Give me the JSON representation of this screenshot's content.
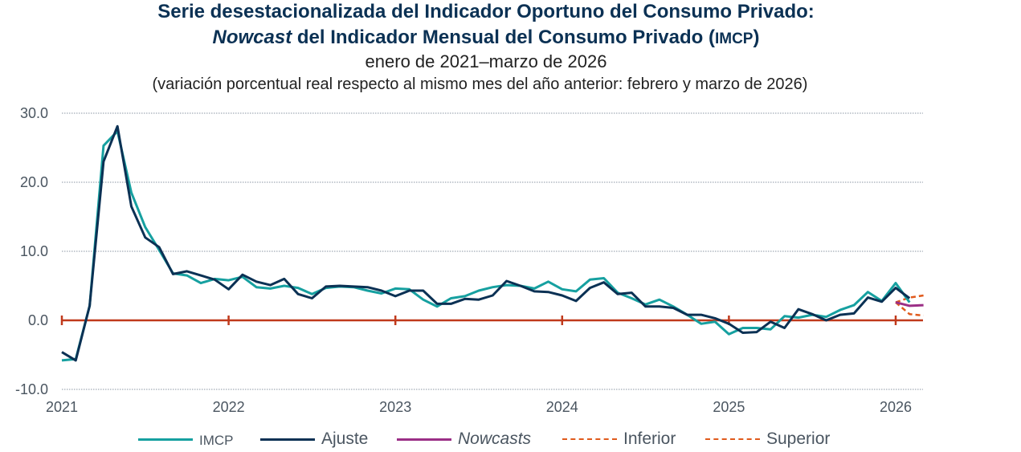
{
  "header": {
    "title_line1": "Serie desestacionalizada del Indicador Oportuno del Consumo Privado:",
    "title_line2_italic": "Nowcast",
    "title_line2_rest": " del Indicador Mensual del Consumo Privado (",
    "title_line2_abbr": "IMCP",
    "title_line2_close": ")",
    "subtitle": "enero de 2021–marzo de 2026",
    "note": "(variación porcentual real respecto al mismo mes del año anterior: febrero y marzo de 2026)"
  },
  "chart_data": {
    "type": "line",
    "title": "Serie desestacionalizada del Indicador Oportuno del Consumo Privado: Nowcast del Indicador Mensual del Consumo Privado (IMCP)",
    "subtitle": "enero de 2021–marzo de 2026",
    "ylabel": "variación porcentual real respecto al mismo mes del año anterior",
    "xlabel": "",
    "ylim": [
      -10,
      30
    ],
    "yticks": [
      "30.0",
      "20.0",
      "10.0",
      "0.0",
      "-10.0"
    ],
    "ytick_values": [
      30,
      20,
      10,
      0,
      -10
    ],
    "xticks": [
      "2021",
      "2022",
      "2023",
      "2024",
      "2025",
      "2026"
    ],
    "x_start": "2021-01",
    "x_end": "2026-03",
    "grid": "horizontal dotted",
    "zero_line_color": "#c0391b",
    "legend_position": "bottom",
    "series": [
      {
        "name": "IMCP",
        "color": "#16a0a0",
        "style": "solid",
        "start": "2021-01",
        "values": [
          -5.8,
          -5.6,
          2.1,
          25.3,
          27.4,
          18.5,
          13.5,
          10.2,
          6.8,
          6.5,
          5.4,
          6.0,
          5.8,
          6.3,
          4.8,
          4.6,
          5.0,
          4.7,
          3.8,
          4.7,
          4.9,
          4.8,
          4.3,
          3.9,
          4.6,
          4.5,
          3.0,
          2.0,
          3.2,
          3.5,
          4.3,
          4.8,
          5.1,
          5.0,
          4.6,
          5.6,
          4.5,
          4.2,
          5.9,
          6.1,
          4.0,
          3.2,
          2.3,
          3.0,
          2.0,
          0.8,
          -0.5,
          -0.2,
          -2.0,
          -1.1,
          -1.1,
          -1.3,
          0.6,
          0.4,
          0.8,
          0.5,
          1.5,
          2.2,
          4.1,
          2.8,
          5.4,
          2.6
        ]
      },
      {
        "name": "Ajuste",
        "color": "#0b3154",
        "style": "solid",
        "start": "2021-01",
        "values": [
          -4.6,
          -5.8,
          2.1,
          23.0,
          28.1,
          16.5,
          12.0,
          10.6,
          6.7,
          7.1,
          6.5,
          5.9,
          4.5,
          6.6,
          5.6,
          5.1,
          6.0,
          3.8,
          3.2,
          4.9,
          5.0,
          4.9,
          4.8,
          4.3,
          3.5,
          4.3,
          4.3,
          2.4,
          2.4,
          3.1,
          3.0,
          3.6,
          5.7,
          5.0,
          4.2,
          4.1,
          3.6,
          2.8,
          4.7,
          5.5,
          3.8,
          4.0,
          2.0,
          2.0,
          1.8,
          0.8,
          0.8,
          0.3,
          -0.5,
          -1.8,
          -1.7,
          -0.2,
          -1.1,
          1.6,
          0.9,
          0.0,
          0.8,
          1.0,
          3.3,
          2.7,
          4.7,
          3.2
        ]
      },
      {
        "name": "Nowcasts",
        "color": "#9b2f86",
        "style": "solid",
        "start": "2026-01",
        "values": [
          2.6,
          2.1,
          2.2
        ]
      },
      {
        "name": "Inferior",
        "color": "#e05a1c",
        "style": "dashed",
        "start": "2026-01",
        "values": [
          2.6,
          0.9,
          0.7
        ]
      },
      {
        "name": "Superior",
        "color": "#e05a1c",
        "style": "dashed",
        "start": "2026-01",
        "values": [
          2.6,
          3.3,
          3.6
        ]
      }
    ]
  },
  "legend": {
    "items": [
      {
        "label": "IMCP",
        "color": "#16a0a0",
        "style": "solid"
      },
      {
        "label": "Ajuste",
        "color": "#0b3154",
        "style": "solid"
      },
      {
        "label": "Nowcasts",
        "color": "#9b2f86",
        "style": "solid"
      },
      {
        "label": "Inferior",
        "color": "#e05a1c",
        "style": "dashed"
      },
      {
        "label": "Superior",
        "color": "#e05a1c",
        "style": "dashed"
      }
    ]
  }
}
